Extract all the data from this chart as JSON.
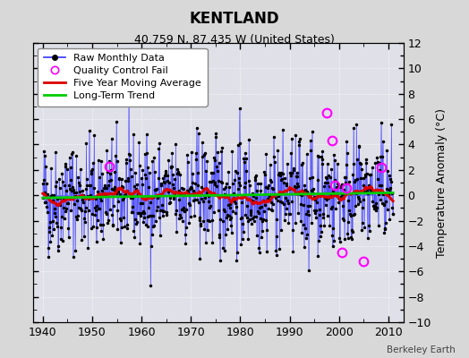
{
  "title": "KENTLAND",
  "subtitle": "40.759 N, 87.435 W (United States)",
  "ylabel_right": "Temperature Anomaly (°C)",
  "credit": "Berkeley Earth",
  "xlim": [
    1938,
    2013
  ],
  "ylim": [
    -10,
    12
  ],
  "yticks": [
    -10,
    -8,
    -6,
    -4,
    -2,
    0,
    2,
    4,
    6,
    8,
    10,
    12
  ],
  "xticks": [
    1940,
    1950,
    1960,
    1970,
    1980,
    1990,
    2000,
    2010
  ],
  "bg_color": "#d8d8d8",
  "plot_bg_color": "#e0e0e8",
  "grid_color": "#ffffff",
  "data_color": "#3333ff",
  "dot_color": "#000000",
  "moving_avg_color": "#dd0000",
  "trend_color": "#00cc00",
  "qc_fail_color": "#ff00ff",
  "seed": 42,
  "n_months": 852,
  "start_year": 1940,
  "noise_std": 2.2,
  "qc_fail_times": [
    1953.5,
    1997.5,
    1998.5,
    1999.2,
    2000.5,
    2001.5,
    2005.0,
    2008.5
  ],
  "qc_fail_values": [
    2.3,
    6.5,
    4.3,
    0.8,
    -4.5,
    0.6,
    -5.2,
    2.2
  ]
}
